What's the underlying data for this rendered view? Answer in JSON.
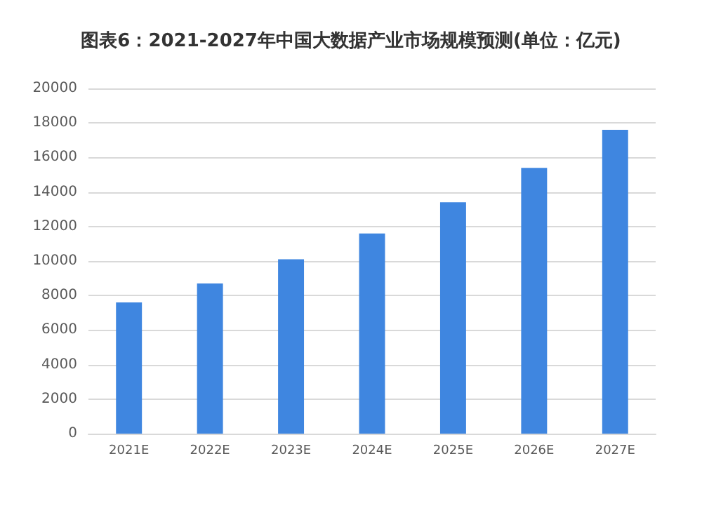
{
  "chart_data": {
    "type": "bar",
    "title": "图表6：2021-2027年中国大数据产业市场规模预测(单位：亿元)",
    "categories": [
      "2021E",
      "2022E",
      "2023E",
      "2024E",
      "2025E",
      "2026E",
      "2027E"
    ],
    "values": [
      7600,
      8700,
      10100,
      11600,
      13400,
      15400,
      17600
    ],
    "color": "#3f86e0",
    "ylim": [
      0,
      20000
    ],
    "yticks": [
      0,
      2000,
      4000,
      6000,
      8000,
      10000,
      12000,
      14000,
      16000,
      18000,
      20000
    ],
    "grid": "y"
  }
}
